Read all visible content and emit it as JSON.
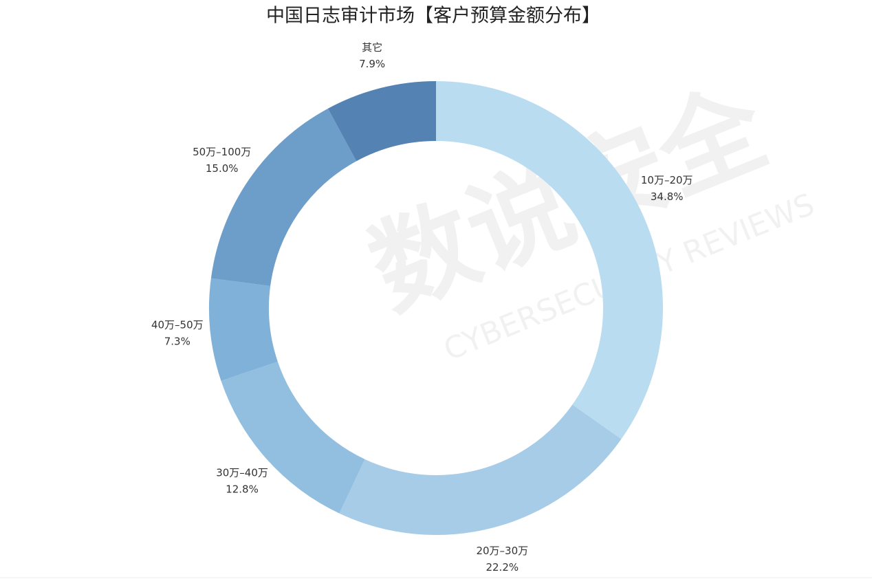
{
  "chart_data": {
    "type": "donut",
    "title": "中国日志审计市场【客户预算金额分布】",
    "categories": [
      "10万–20万",
      "20万–30万",
      "30万–40万",
      "40万–50万",
      "50万–100万",
      "其它"
    ],
    "values": [
      34.8,
      22.2,
      12.8,
      7.3,
      15.0,
      7.9
    ],
    "value_labels": [
      "34.8%",
      "22.2%",
      "12.8%",
      "7.3%",
      "15.0%",
      "7.9%"
    ],
    "colors": [
      "#b9dcf0",
      "#a7cce8",
      "#92bfe0",
      "#80b1d9",
      "#6d9ec9",
      "#5483b3"
    ],
    "watermark": {
      "title": "数说安全",
      "subtitle": "CYBERSECURITY REVIEWS"
    }
  }
}
